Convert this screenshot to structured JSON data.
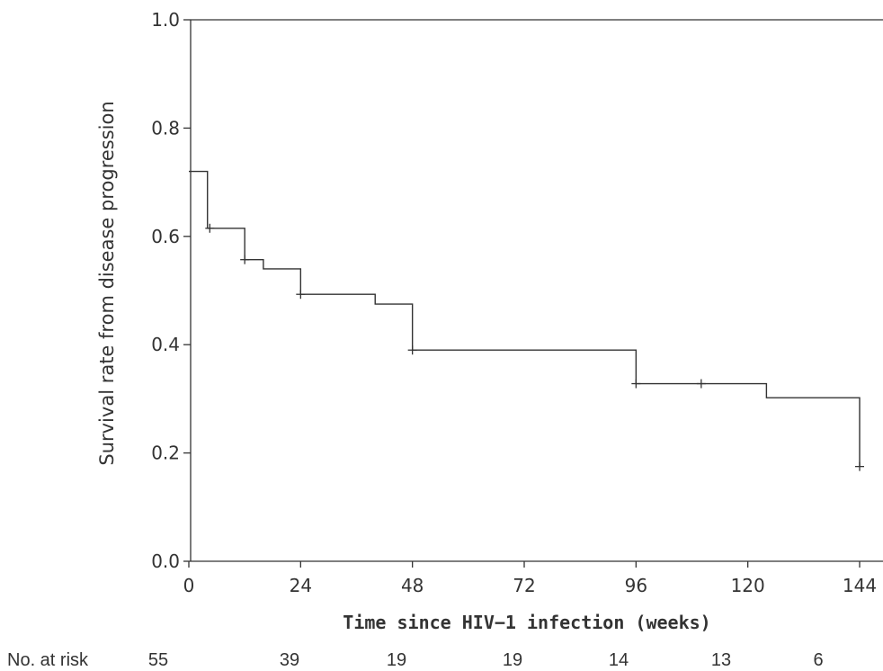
{
  "chart_data": {
    "type": "line",
    "subtype": "kaplan-meier",
    "title": "",
    "xlabel": "Time since HIV−1 infection (weeks)",
    "ylabel": "Survival rate from disease progression",
    "xlim": [
      0,
      148
    ],
    "ylim": [
      0.0,
      1.0
    ],
    "x_ticks": [
      "0",
      "24",
      "48",
      "72",
      "96",
      "120",
      "144"
    ],
    "y_ticks": [
      "0.0",
      "0.2",
      "0.4",
      "0.6",
      "0.8",
      "1.0"
    ],
    "grid": false,
    "series": [
      {
        "steps": [
          {
            "x": 0,
            "y": 0.72
          },
          {
            "x": 4,
            "y": 0.615
          },
          {
            "x": 12,
            "y": 0.557
          },
          {
            "x": 16,
            "y": 0.54
          },
          {
            "x": 24,
            "y": 0.493
          },
          {
            "x": 40,
            "y": 0.475
          },
          {
            "x": 48,
            "y": 0.39
          },
          {
            "x": 96,
            "y": 0.328
          },
          {
            "x": 124,
            "y": 0.302
          },
          {
            "x": 144,
            "y": 0.175
          }
        ],
        "censored": [
          {
            "x": 4.5,
            "y": 0.615
          },
          {
            "x": 12,
            "y": 0.557
          },
          {
            "x": 24,
            "y": 0.493
          },
          {
            "x": 48,
            "y": 0.39
          },
          {
            "x": 96,
            "y": 0.328
          },
          {
            "x": 110,
            "y": 0.328
          },
          {
            "x": 144,
            "y": 0.175
          }
        ],
        "end_x": 144
      }
    ],
    "risk_table": {
      "label": "No. at risk",
      "values": [
        "55",
        "39",
        "19",
        "19",
        "14",
        "13",
        "6"
      ]
    }
  }
}
